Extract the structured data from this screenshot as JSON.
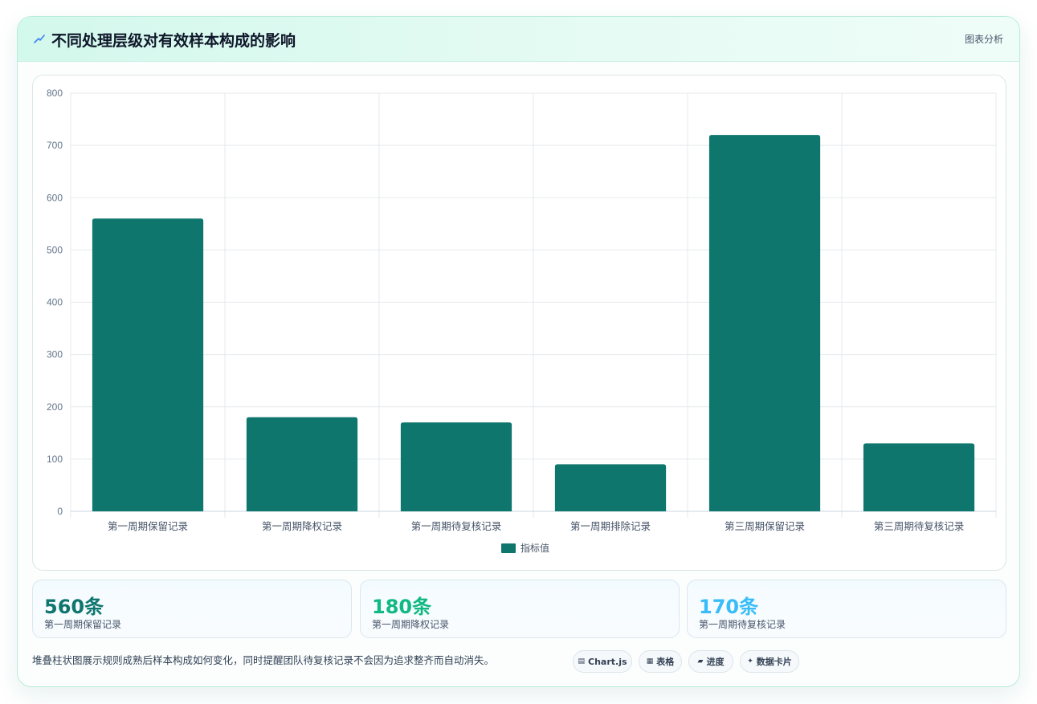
{
  "header": {
    "icon": "chart-zigzag-icon",
    "title": "不同处理层级对有效样本构成的影响",
    "tag": "图表分析"
  },
  "chart_data": {
    "type": "bar",
    "categories": [
      "第一周期保留记录",
      "第一周期降权记录",
      "第一周期待复核记录",
      "第一周期排除记录",
      "第三周期保留记录",
      "第三周期待复核记录"
    ],
    "series": [
      {
        "name": "指标值",
        "values": [
          560,
          180,
          170,
          90,
          720,
          130
        ],
        "color": "#0f766e"
      }
    ],
    "title": "",
    "xlabel": "",
    "ylabel": "",
    "ylim": [
      0,
      800
    ],
    "yticks": [
      0,
      100,
      200,
      300,
      400,
      500,
      600,
      700,
      800
    ],
    "grid": true,
    "legend": "bottom-center"
  },
  "stats": [
    {
      "value": "560条",
      "label": "第一周期保留记录",
      "color": "#0f766e"
    },
    {
      "value": "180条",
      "label": "第一周期降权记录",
      "color": "#10b981"
    },
    {
      "value": "170条",
      "label": "第一周期待复核记录",
      "color": "#38bdf8"
    }
  ],
  "footer": {
    "note": "堆叠柱状图展示规则成熟后样本构成如何变化，同时提醒团队待复核记录不会因为追求整齐而自动消失。",
    "pills": [
      {
        "icon": "chart-icon",
        "glyph": "▤",
        "label": "Chart.js"
      },
      {
        "icon": "table-icon",
        "glyph": "▦",
        "label": "表格"
      },
      {
        "icon": "progress-icon",
        "glyph": "▰",
        "label": "进度"
      },
      {
        "icon": "sparkle-icon",
        "glyph": "✦",
        "label": "数据卡片"
      }
    ]
  }
}
